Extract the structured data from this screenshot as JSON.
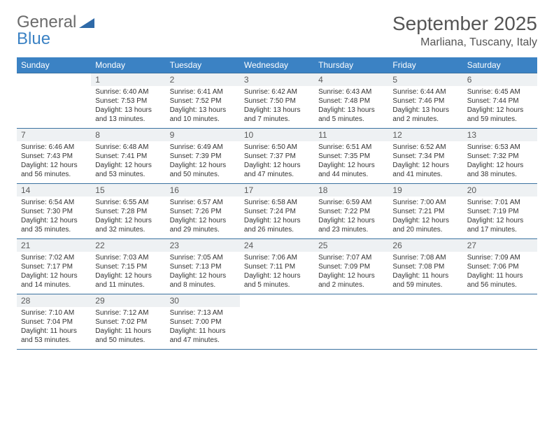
{
  "logo": {
    "text1": "General",
    "text2": "Blue"
  },
  "title": "September 2025",
  "location": "Marliana, Tuscany, Italy",
  "colors": {
    "header_bg": "#3b82c4",
    "header_text": "#ffffff",
    "daynum_bg": "#eef1f3",
    "border": "#3b72a0",
    "body_bg": "#ffffff",
    "text": "#333333",
    "logo_gray": "#6b6b6b",
    "logo_blue": "#3b82c4"
  },
  "day_headers": [
    "Sunday",
    "Monday",
    "Tuesday",
    "Wednesday",
    "Thursday",
    "Friday",
    "Saturday"
  ],
  "weeks": [
    [
      {
        "n": "",
        "lines": []
      },
      {
        "n": "1",
        "lines": [
          "Sunrise: 6:40 AM",
          "Sunset: 7:53 PM",
          "Daylight: 13 hours",
          "and 13 minutes."
        ]
      },
      {
        "n": "2",
        "lines": [
          "Sunrise: 6:41 AM",
          "Sunset: 7:52 PM",
          "Daylight: 13 hours",
          "and 10 minutes."
        ]
      },
      {
        "n": "3",
        "lines": [
          "Sunrise: 6:42 AM",
          "Sunset: 7:50 PM",
          "Daylight: 13 hours",
          "and 7 minutes."
        ]
      },
      {
        "n": "4",
        "lines": [
          "Sunrise: 6:43 AM",
          "Sunset: 7:48 PM",
          "Daylight: 13 hours",
          "and 5 minutes."
        ]
      },
      {
        "n": "5",
        "lines": [
          "Sunrise: 6:44 AM",
          "Sunset: 7:46 PM",
          "Daylight: 13 hours",
          "and 2 minutes."
        ]
      },
      {
        "n": "6",
        "lines": [
          "Sunrise: 6:45 AM",
          "Sunset: 7:44 PM",
          "Daylight: 12 hours",
          "and 59 minutes."
        ]
      }
    ],
    [
      {
        "n": "7",
        "lines": [
          "Sunrise: 6:46 AM",
          "Sunset: 7:43 PM",
          "Daylight: 12 hours",
          "and 56 minutes."
        ]
      },
      {
        "n": "8",
        "lines": [
          "Sunrise: 6:48 AM",
          "Sunset: 7:41 PM",
          "Daylight: 12 hours",
          "and 53 minutes."
        ]
      },
      {
        "n": "9",
        "lines": [
          "Sunrise: 6:49 AM",
          "Sunset: 7:39 PM",
          "Daylight: 12 hours",
          "and 50 minutes."
        ]
      },
      {
        "n": "10",
        "lines": [
          "Sunrise: 6:50 AM",
          "Sunset: 7:37 PM",
          "Daylight: 12 hours",
          "and 47 minutes."
        ]
      },
      {
        "n": "11",
        "lines": [
          "Sunrise: 6:51 AM",
          "Sunset: 7:35 PM",
          "Daylight: 12 hours",
          "and 44 minutes."
        ]
      },
      {
        "n": "12",
        "lines": [
          "Sunrise: 6:52 AM",
          "Sunset: 7:34 PM",
          "Daylight: 12 hours",
          "and 41 minutes."
        ]
      },
      {
        "n": "13",
        "lines": [
          "Sunrise: 6:53 AM",
          "Sunset: 7:32 PM",
          "Daylight: 12 hours",
          "and 38 minutes."
        ]
      }
    ],
    [
      {
        "n": "14",
        "lines": [
          "Sunrise: 6:54 AM",
          "Sunset: 7:30 PM",
          "Daylight: 12 hours",
          "and 35 minutes."
        ]
      },
      {
        "n": "15",
        "lines": [
          "Sunrise: 6:55 AM",
          "Sunset: 7:28 PM",
          "Daylight: 12 hours",
          "and 32 minutes."
        ]
      },
      {
        "n": "16",
        "lines": [
          "Sunrise: 6:57 AM",
          "Sunset: 7:26 PM",
          "Daylight: 12 hours",
          "and 29 minutes."
        ]
      },
      {
        "n": "17",
        "lines": [
          "Sunrise: 6:58 AM",
          "Sunset: 7:24 PM",
          "Daylight: 12 hours",
          "and 26 minutes."
        ]
      },
      {
        "n": "18",
        "lines": [
          "Sunrise: 6:59 AM",
          "Sunset: 7:22 PM",
          "Daylight: 12 hours",
          "and 23 minutes."
        ]
      },
      {
        "n": "19",
        "lines": [
          "Sunrise: 7:00 AM",
          "Sunset: 7:21 PM",
          "Daylight: 12 hours",
          "and 20 minutes."
        ]
      },
      {
        "n": "20",
        "lines": [
          "Sunrise: 7:01 AM",
          "Sunset: 7:19 PM",
          "Daylight: 12 hours",
          "and 17 minutes."
        ]
      }
    ],
    [
      {
        "n": "21",
        "lines": [
          "Sunrise: 7:02 AM",
          "Sunset: 7:17 PM",
          "Daylight: 12 hours",
          "and 14 minutes."
        ]
      },
      {
        "n": "22",
        "lines": [
          "Sunrise: 7:03 AM",
          "Sunset: 7:15 PM",
          "Daylight: 12 hours",
          "and 11 minutes."
        ]
      },
      {
        "n": "23",
        "lines": [
          "Sunrise: 7:05 AM",
          "Sunset: 7:13 PM",
          "Daylight: 12 hours",
          "and 8 minutes."
        ]
      },
      {
        "n": "24",
        "lines": [
          "Sunrise: 7:06 AM",
          "Sunset: 7:11 PM",
          "Daylight: 12 hours",
          "and 5 minutes."
        ]
      },
      {
        "n": "25",
        "lines": [
          "Sunrise: 7:07 AM",
          "Sunset: 7:09 PM",
          "Daylight: 12 hours",
          "and 2 minutes."
        ]
      },
      {
        "n": "26",
        "lines": [
          "Sunrise: 7:08 AM",
          "Sunset: 7:08 PM",
          "Daylight: 11 hours",
          "and 59 minutes."
        ]
      },
      {
        "n": "27",
        "lines": [
          "Sunrise: 7:09 AM",
          "Sunset: 7:06 PM",
          "Daylight: 11 hours",
          "and 56 minutes."
        ]
      }
    ],
    [
      {
        "n": "28",
        "lines": [
          "Sunrise: 7:10 AM",
          "Sunset: 7:04 PM",
          "Daylight: 11 hours",
          "and 53 minutes."
        ]
      },
      {
        "n": "29",
        "lines": [
          "Sunrise: 7:12 AM",
          "Sunset: 7:02 PM",
          "Daylight: 11 hours",
          "and 50 minutes."
        ]
      },
      {
        "n": "30",
        "lines": [
          "Sunrise: 7:13 AM",
          "Sunset: 7:00 PM",
          "Daylight: 11 hours",
          "and 47 minutes."
        ]
      },
      {
        "n": "",
        "lines": []
      },
      {
        "n": "",
        "lines": []
      },
      {
        "n": "",
        "lines": []
      },
      {
        "n": "",
        "lines": []
      }
    ]
  ]
}
